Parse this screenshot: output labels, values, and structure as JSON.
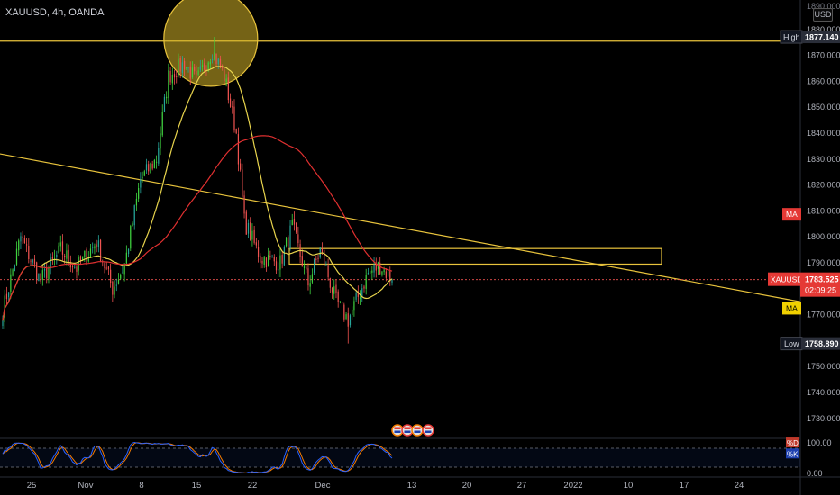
{
  "header": {
    "symbol": "XAUUSD, 4h, OANDA",
    "currency": "USD"
  },
  "price_axis": {
    "labels": [
      "1880.000",
      "1870.000",
      "1860.000",
      "1850.000",
      "1840.000",
      "1830.000",
      "1820.000",
      "1810.000",
      "1800.000",
      "1790.000",
      "1780.000",
      "1770.000",
      "1760.000",
      "1750.000",
      "1740.000",
      "1730.000"
    ],
    "top_label": "1890.000"
  },
  "markers": {
    "high_label": "High",
    "high_value": "1877.140",
    "low_label": "Low",
    "low_value": "1758.890",
    "ma_red_label": "MA",
    "ma_yellow_label": "MA",
    "last_symbol": "XAUUSD",
    "last_price": "1783.525",
    "countdown": "02:09:25"
  },
  "osc_axis": {
    "upper": "100.00",
    "lower": "0.00",
    "tag_d": "%D",
    "tag_k": "%K"
  },
  "time_axis": {
    "labels": [
      "25",
      "Nov",
      "8",
      "15",
      "22",
      "Dec",
      "13",
      "20",
      "27",
      "2022",
      "10",
      "17",
      "24"
    ]
  },
  "colors": {
    "up": "#26a69a",
    "up_bright": "#3fd13f",
    "down": "#ef5350",
    "ma_yellow": "#e8d44d",
    "ma_red": "#e03030",
    "line": "#e8c33c",
    "osc_k": "#2962ff",
    "osc_d": "#f57c00",
    "badge_red": "#e53935",
    "badge_yellow": "#f0d000"
  },
  "chart_data": {
    "type": "candlestick",
    "instrument": "XAUUSD",
    "timeframe": "4h",
    "y_range": [
      1723,
      1890
    ],
    "high": 1877.14,
    "low": 1758.89,
    "last": 1783.525,
    "trend_line": {
      "start_price": 1832,
      "end_price": 1775
    },
    "horizontal_level": 1875.5,
    "rectangle": {
      "top": 1795.5,
      "bottom": 1789.5
    },
    "segments": [
      {
        "from": 1768,
        "to": 1800,
        "n": 10
      },
      {
        "from": 1800,
        "to": 1783,
        "n": 10
      },
      {
        "from": 1783,
        "to": 1795,
        "n": 10
      },
      {
        "from": 1795,
        "to": 1788,
        "n": 8
      },
      {
        "from": 1788,
        "to": 1798,
        "n": 10
      },
      {
        "from": 1798,
        "to": 1780,
        "n": 8
      },
      {
        "from": 1780,
        "to": 1789,
        "n": 6
      },
      {
        "from": 1789,
        "to": 1822,
        "n": 8
      },
      {
        "from": 1822,
        "to": 1830,
        "n": 8
      },
      {
        "from": 1830,
        "to": 1862,
        "n": 6
      },
      {
        "from": 1862,
        "to": 1867,
        "n": 8
      },
      {
        "from": 1867,
        "to": 1860,
        "n": 6
      },
      {
        "from": 1860,
        "to": 1872,
        "n": 8
      },
      {
        "from": 1872,
        "to": 1862,
        "n": 6
      },
      {
        "from": 1862,
        "to": 1840,
        "n": 6
      },
      {
        "from": 1840,
        "to": 1806,
        "n": 4
      },
      {
        "from": 1806,
        "to": 1792,
        "n": 8
      },
      {
        "from": 1792,
        "to": 1790,
        "n": 10
      },
      {
        "from": 1790,
        "to": 1804,
        "n": 6
      },
      {
        "from": 1804,
        "to": 1782,
        "n": 8
      },
      {
        "from": 1782,
        "to": 1795,
        "n": 6
      },
      {
        "from": 1795,
        "to": 1775,
        "n": 8
      },
      {
        "from": 1775,
        "to": 1768,
        "n": 6
      },
      {
        "from": 1768,
        "to": 1786,
        "n": 10
      },
      {
        "from": 1786,
        "to": 1789,
        "n": 6
      },
      {
        "from": 1789,
        "to": 1783.5,
        "n": 6
      }
    ],
    "oscillator": {
      "name": "Stochastic",
      "upper": 100,
      "lower": 0,
      "series": [
        "%K",
        "%D"
      ]
    }
  }
}
